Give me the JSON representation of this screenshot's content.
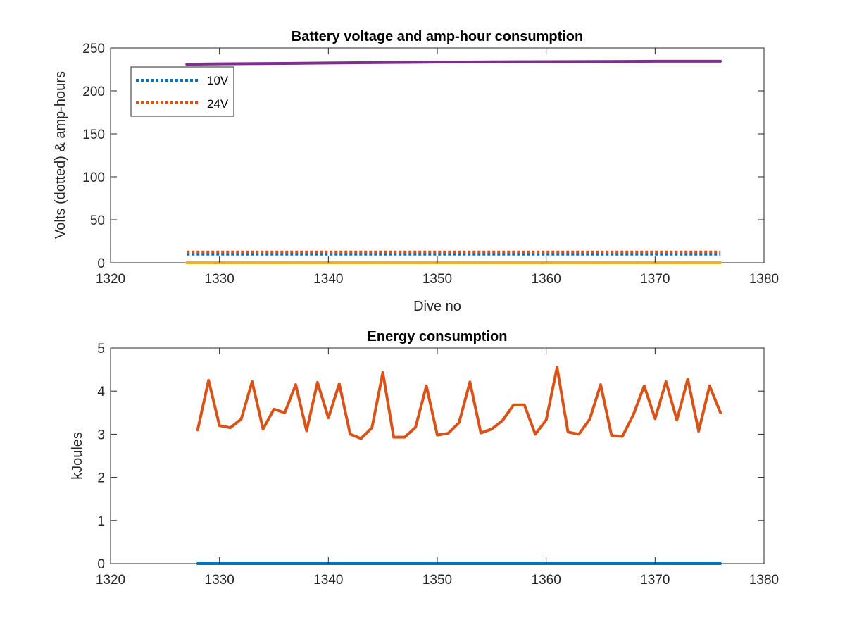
{
  "chart_data": [
    {
      "type": "line",
      "title": "Battery voltage and amp-hour consumption",
      "xlabel": "Dive no",
      "ylabel": "Volts (dotted) & amp-hours",
      "xlim": [
        1320,
        1380
      ],
      "ylim": [
        0,
        250
      ],
      "xticks": [
        1320,
        1330,
        1340,
        1350,
        1360,
        1370,
        1380
      ],
      "yticks": [
        0,
        50,
        100,
        150,
        200,
        250
      ],
      "legend_position": "top-left",
      "grid": false,
      "series": [
        {
          "name": "10V",
          "style": "dotted",
          "color": "#0072BD",
          "x": [
            1327,
            1376
          ],
          "y": [
            10,
            10
          ]
        },
        {
          "name": "24V",
          "style": "dotted",
          "color": "#D95319",
          "x": [
            1327,
            1376
          ],
          "y": [
            12.5,
            12.5
          ]
        },
        {
          "style": "solid",
          "color": "#EDB120",
          "x": [
            1327,
            1376
          ],
          "y": [
            0,
            0
          ]
        },
        {
          "style": "solid",
          "color": "#7E2F8E",
          "x": [
            1327,
            1330,
            1336,
            1340,
            1345,
            1350,
            1355,
            1360,
            1365,
            1370,
            1376
          ],
          "y": [
            231,
            231.5,
            232,
            232.5,
            233,
            233.5,
            233.8,
            234,
            234.2,
            234.5,
            234.5
          ]
        }
      ]
    },
    {
      "type": "line",
      "title": "Energy consumption",
      "xlabel": "",
      "ylabel": "kJoules",
      "xlim": [
        1320,
        1380
      ],
      "ylim": [
        0,
        5
      ],
      "xticks": [
        1320,
        1330,
        1340,
        1350,
        1360,
        1370,
        1380
      ],
      "yticks": [
        0,
        1,
        2,
        3,
        4,
        5
      ],
      "grid": false,
      "series": [
        {
          "style": "solid",
          "color": "#0072BD",
          "x": [
            1328,
            1376
          ],
          "y": [
            0,
            0
          ]
        },
        {
          "style": "solid",
          "color": "#D95319",
          "x": [
            1328,
            1329,
            1330,
            1331,
            1332,
            1333,
            1334,
            1335,
            1336,
            1337,
            1338,
            1339,
            1340,
            1341,
            1342,
            1343,
            1344,
            1345,
            1346,
            1347,
            1348,
            1349,
            1350,
            1351,
            1352,
            1353,
            1354,
            1355,
            1356,
            1357,
            1358,
            1359,
            1360,
            1361,
            1362,
            1363,
            1364,
            1365,
            1366,
            1367,
            1368,
            1369,
            1370,
            1371,
            1372,
            1373,
            1374,
            1375,
            1376
          ],
          "y": [
            3.1,
            4.25,
            3.2,
            3.15,
            3.35,
            4.22,
            3.12,
            3.58,
            3.5,
            4.15,
            3.08,
            4.2,
            3.38,
            4.17,
            3.0,
            2.9,
            3.15,
            4.43,
            2.93,
            2.93,
            3.16,
            4.12,
            2.98,
            3.02,
            3.27,
            4.21,
            3.03,
            3.12,
            3.32,
            3.68,
            3.68,
            3.0,
            3.33,
            4.55,
            3.05,
            3.0,
            3.35,
            4.15,
            2.97,
            2.95,
            3.45,
            4.12,
            3.36,
            4.22,
            3.33,
            4.28,
            3.07,
            4.12,
            3.5
          ]
        }
      ]
    }
  ]
}
